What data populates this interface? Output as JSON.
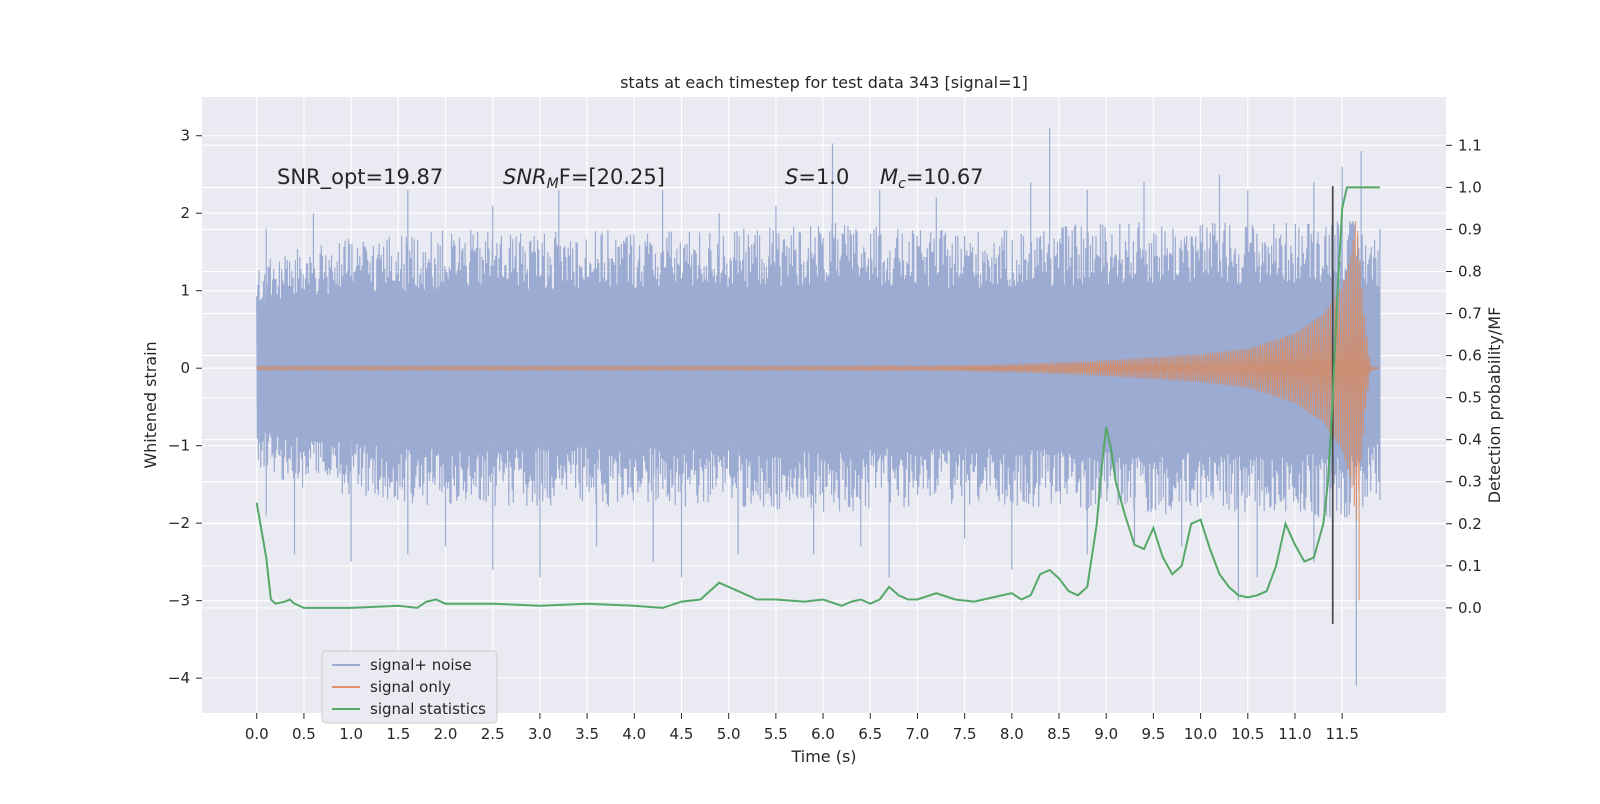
{
  "chart_data": {
    "type": "line",
    "title": "stats at each timestep for test data 343 [signal=1]",
    "xlabel": "Time (s)",
    "ylabel": "Whitened strain",
    "ylabel_right": "Detection probability/MF",
    "xlim": [
      -0.58,
      12.6
    ],
    "ylim": [
      -4.45,
      3.5
    ],
    "ylim_right": [
      -0.25,
      1.215
    ],
    "x_ticks": [
      "0.0",
      "0.5",
      "1.0",
      "1.5",
      "2.0",
      "2.5",
      "3.0",
      "3.5",
      "4.0",
      "4.5",
      "5.0",
      "5.5",
      "6.0",
      "6.5",
      "7.0",
      "7.5",
      "8.0",
      "8.5",
      "9.0",
      "9.5",
      "10.0",
      "10.5",
      "11.0",
      "11.5"
    ],
    "y_ticks": [
      "3",
      "2",
      "1",
      "0",
      "−1",
      "−2",
      "−3",
      "−4"
    ],
    "y_ticks_right": [
      "1.1",
      "1.0",
      "0.9",
      "0.8",
      "0.7",
      "0.6",
      "0.5",
      "0.4",
      "0.3",
      "0.2",
      "0.1",
      "0.0"
    ],
    "grid": true,
    "legend_placement": "lower-left",
    "annotations": [
      "SNR_opt=19.87",
      "SNR",
      "M",
      "F=[20.25]",
      "S",
      "=1.0",
      "M",
      "c",
      "=10.67"
    ],
    "marker_line": {
      "x": 11.4,
      "y_range": [
        -3.3,
        2.35
      ]
    },
    "colors": {
      "signal_noise": "#8da0cb",
      "signal_only": "#dd8452",
      "signal_statistics": "#55a868",
      "background": "#eaeaf2",
      "grid": "#ffffff",
      "marker": "#4c4c4c"
    },
    "series": [
      {
        "name": "signal+ noise",
        "envelope_upper": [
          [
            0,
            1.3
          ],
          [
            0.5,
            1.5
          ],
          [
            1,
            1.6
          ],
          [
            2,
            1.7
          ],
          [
            3,
            1.7
          ],
          [
            4,
            1.7
          ],
          [
            5,
            1.7
          ],
          [
            6,
            1.8
          ],
          [
            7,
            1.7
          ],
          [
            8,
            1.7
          ],
          [
            9,
            1.8
          ],
          [
            10,
            1.8
          ],
          [
            11,
            1.8
          ],
          [
            11.5,
            1.9
          ],
          [
            11.9,
            1.6
          ]
        ],
        "peaks": [
          [
            0.1,
            1.8
          ],
          [
            0.6,
            2.0
          ],
          [
            1.6,
            2.3
          ],
          [
            2.5,
            2.1
          ],
          [
            3.2,
            2.3
          ],
          [
            4.3,
            2.3
          ],
          [
            4.9,
            2.0
          ],
          [
            5.5,
            2.1
          ],
          [
            6.1,
            2.9
          ],
          [
            6.6,
            2.3
          ],
          [
            7.2,
            2.2
          ],
          [
            8.2,
            2.4
          ],
          [
            8.4,
            3.1
          ],
          [
            8.8,
            2.3
          ],
          [
            9.4,
            2.4
          ],
          [
            10.2,
            2.5
          ],
          [
            10.5,
            2.3
          ],
          [
            11.2,
            2.4
          ],
          [
            11.5,
            2.6
          ],
          [
            11.7,
            2.8
          ],
          [
            11.9,
            1.8
          ]
        ],
        "troughs": [
          [
            0.1,
            -1.9
          ],
          [
            0.4,
            -2.4
          ],
          [
            1.0,
            -2.5
          ],
          [
            1.6,
            -2.4
          ],
          [
            2.0,
            -2.3
          ],
          [
            2.5,
            -2.6
          ],
          [
            3.0,
            -2.7
          ],
          [
            3.6,
            -2.3
          ],
          [
            4.2,
            -2.5
          ],
          [
            4.5,
            -2.7
          ],
          [
            5.1,
            -2.4
          ],
          [
            5.9,
            -2.4
          ],
          [
            6.4,
            -2.3
          ],
          [
            6.7,
            -2.7
          ],
          [
            7.5,
            -2.2
          ],
          [
            8.0,
            -2.6
          ],
          [
            8.8,
            -2.4
          ],
          [
            9.3,
            -2.3
          ],
          [
            9.8,
            -2.3
          ],
          [
            10.4,
            -3.0
          ],
          [
            10.6,
            -2.7
          ],
          [
            11.2,
            -2.5
          ],
          [
            11.4,
            -2.7
          ],
          [
            11.65,
            -4.1
          ],
          [
            11.9,
            -1.7
          ]
        ]
      },
      {
        "name": "signal only",
        "envelope": [
          [
            0,
            0.02
          ],
          [
            6,
            0.02
          ],
          [
            7,
            0.03
          ],
          [
            8,
            0.05
          ],
          [
            9,
            0.1
          ],
          [
            10,
            0.18
          ],
          [
            10.5,
            0.25
          ],
          [
            11,
            0.45
          ],
          [
            11.3,
            0.7
          ],
          [
            11.5,
            1.05
          ],
          [
            11.6,
            1.5
          ],
          [
            11.65,
            2.0
          ],
          [
            11.7,
            1.2
          ],
          [
            11.75,
            0.5
          ],
          [
            11.8,
            0.02
          ],
          [
            11.9,
            0.0
          ]
        ]
      },
      {
        "name": "signal statistics",
        "points": [
          [
            0,
            0.25
          ],
          [
            0.1,
            0.12
          ],
          [
            0.15,
            0.02
          ],
          [
            0.2,
            0.01
          ],
          [
            0.3,
            0.015
          ],
          [
            0.35,
            0.02
          ],
          [
            0.4,
            0.01
          ],
          [
            0.5,
            0.0
          ],
          [
            1,
            0.0
          ],
          [
            1.5,
            0.005
          ],
          [
            1.7,
            0.0
          ],
          [
            1.8,
            0.015
          ],
          [
            1.9,
            0.02
          ],
          [
            2.0,
            0.01
          ],
          [
            2.5,
            0.01
          ],
          [
            3.0,
            0.005
          ],
          [
            3.5,
            0.01
          ],
          [
            4.0,
            0.005
          ],
          [
            4.3,
            0.0
          ],
          [
            4.5,
            0.015
          ],
          [
            4.7,
            0.02
          ],
          [
            4.8,
            0.04
          ],
          [
            4.9,
            0.06
          ],
          [
            5.0,
            0.05
          ],
          [
            5.1,
            0.04
          ],
          [
            5.3,
            0.02
          ],
          [
            5.5,
            0.02
          ],
          [
            5.8,
            0.015
          ],
          [
            6.0,
            0.02
          ],
          [
            6.2,
            0.005
          ],
          [
            6.3,
            0.015
          ],
          [
            6.4,
            0.02
          ],
          [
            6.5,
            0.01
          ],
          [
            6.6,
            0.02
          ],
          [
            6.7,
            0.05
          ],
          [
            6.8,
            0.03
          ],
          [
            6.9,
            0.02
          ],
          [
            7.0,
            0.02
          ],
          [
            7.2,
            0.035
          ],
          [
            7.4,
            0.02
          ],
          [
            7.6,
            0.015
          ],
          [
            7.8,
            0.025
          ],
          [
            8.0,
            0.035
          ],
          [
            8.1,
            0.02
          ],
          [
            8.2,
            0.03
          ],
          [
            8.3,
            0.08
          ],
          [
            8.4,
            0.09
          ],
          [
            8.5,
            0.07
          ],
          [
            8.6,
            0.04
          ],
          [
            8.7,
            0.03
          ],
          [
            8.8,
            0.05
          ],
          [
            8.9,
            0.2
          ],
          [
            8.95,
            0.33
          ],
          [
            9.0,
            0.43
          ],
          [
            9.05,
            0.38
          ],
          [
            9.1,
            0.3
          ],
          [
            9.2,
            0.22
          ],
          [
            9.3,
            0.15
          ],
          [
            9.4,
            0.14
          ],
          [
            9.5,
            0.19
          ],
          [
            9.6,
            0.12
          ],
          [
            9.7,
            0.08
          ],
          [
            9.8,
            0.1
          ],
          [
            9.9,
            0.2
          ],
          [
            10.0,
            0.21
          ],
          [
            10.1,
            0.14
          ],
          [
            10.2,
            0.08
          ],
          [
            10.3,
            0.05
          ],
          [
            10.4,
            0.03
          ],
          [
            10.5,
            0.025
          ],
          [
            10.6,
            0.03
          ],
          [
            10.7,
            0.04
          ],
          [
            10.8,
            0.1
          ],
          [
            10.9,
            0.2
          ],
          [
            11.0,
            0.15
          ],
          [
            11.1,
            0.11
          ],
          [
            11.2,
            0.12
          ],
          [
            11.3,
            0.2
          ],
          [
            11.35,
            0.3
          ],
          [
            11.4,
            0.5
          ],
          [
            11.45,
            0.75
          ],
          [
            11.5,
            0.95
          ],
          [
            11.55,
            1.0
          ],
          [
            11.9,
            1.0
          ]
        ]
      }
    ]
  }
}
